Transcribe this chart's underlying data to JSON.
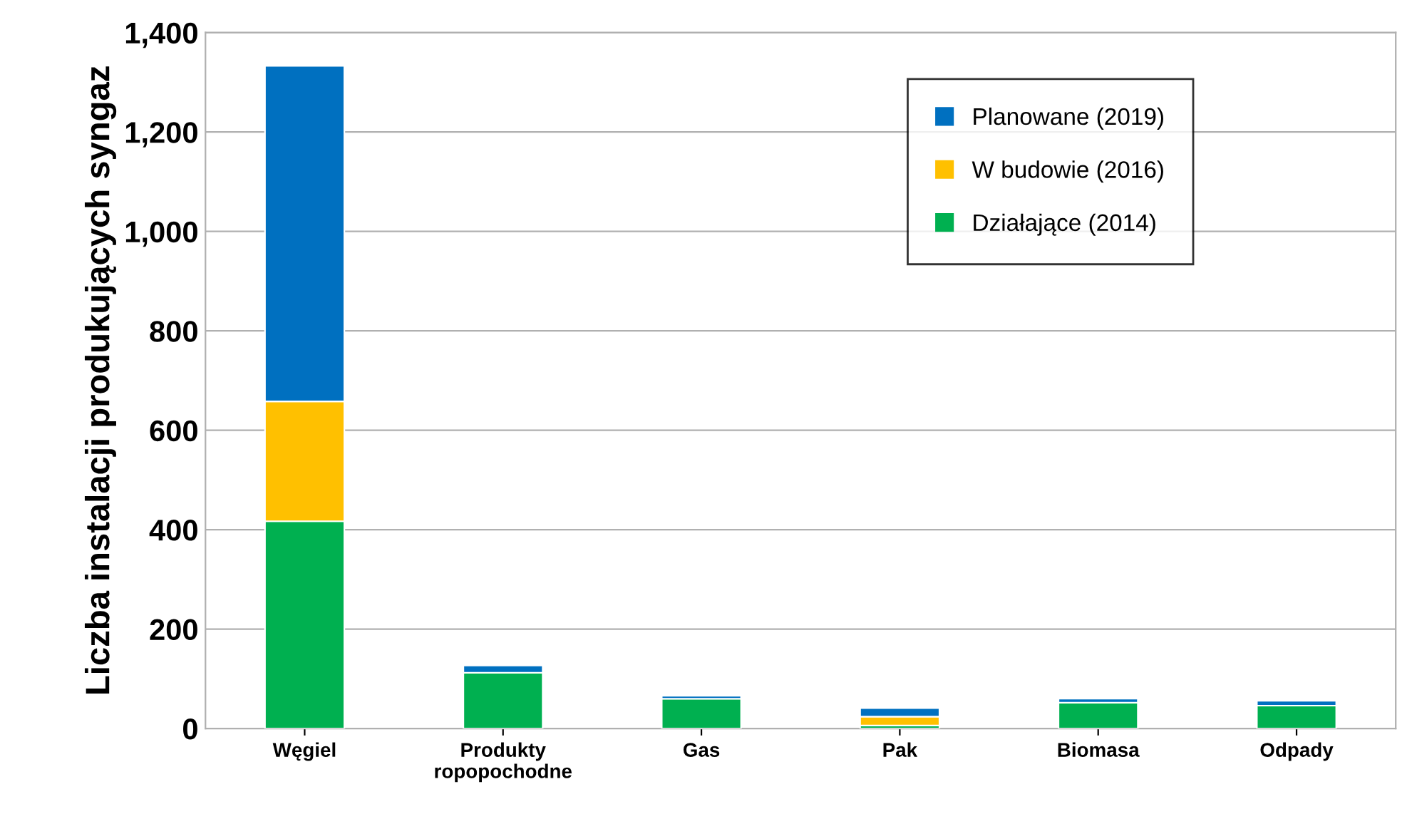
{
  "chart_data": {
    "type": "bar",
    "stacked": true,
    "ylabel": "Liczba instalacji produkujących syngaz",
    "categories": [
      "Węgiel",
      "Produkty\nropopochodne",
      "Gas",
      "Pak",
      "Biomasa",
      "Odpady"
    ],
    "series": [
      {
        "name": "Działające (2014)",
        "color": "#00b050",
        "values": [
          417,
          112,
          60,
          6,
          52,
          46
        ]
      },
      {
        "name": "W budowie (2016)",
        "color": "#ffc000",
        "values": [
          241,
          null,
          0,
          18,
          null,
          null
        ]
      },
      {
        "name": "Planowane (2019)",
        "color": "#0070c0",
        "values": [
          675,
          15,
          6,
          17,
          8,
          10
        ]
      }
    ],
    "ylim": [
      0,
      1400
    ],
    "yticks": [
      {
        "value": 0,
        "label": "0"
      },
      {
        "value": 200,
        "label": "200"
      },
      {
        "value": 400,
        "label": "400"
      },
      {
        "value": 600,
        "label": "600"
      },
      {
        "value": 800,
        "label": "800"
      },
      {
        "value": 1000,
        "label": "1,000"
      },
      {
        "value": 1200,
        "label": "1,200"
      },
      {
        "value": 1400,
        "label": "1,400"
      }
    ],
    "grid": "y",
    "legend": "top right"
  }
}
